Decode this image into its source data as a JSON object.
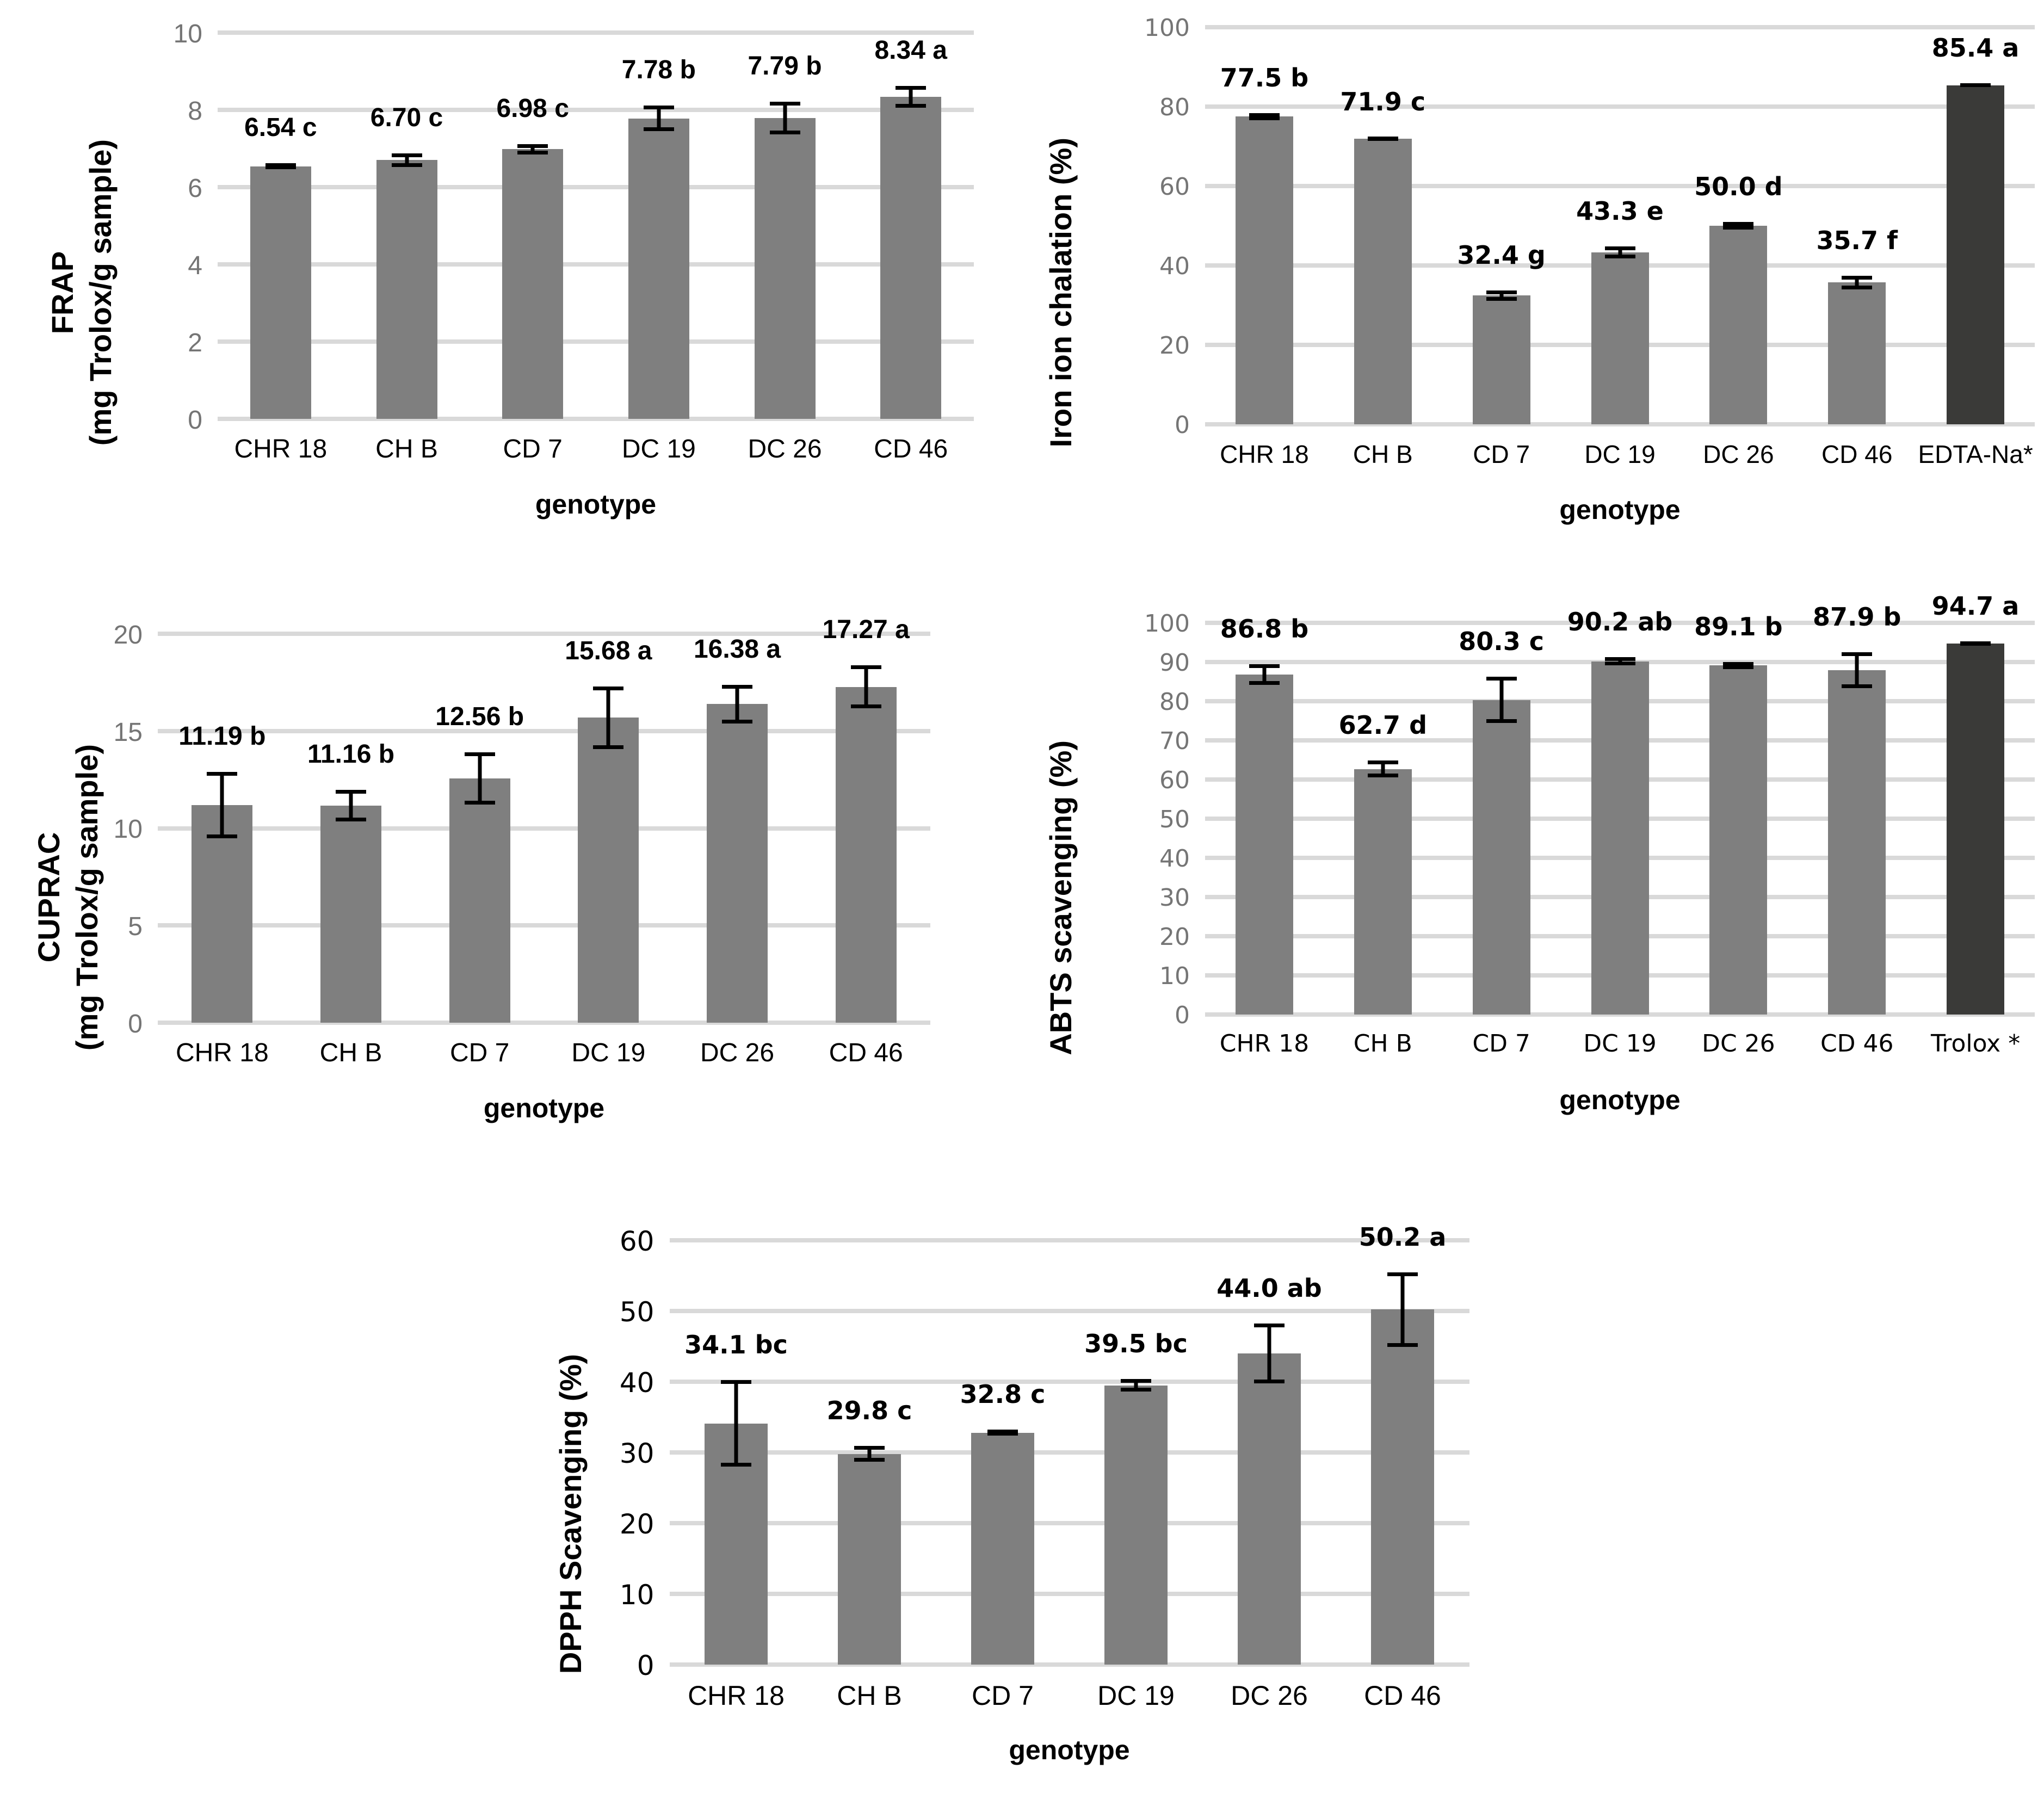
{
  "figure_title": "",
  "colors": {
    "bar_gray": "#7F7F7F",
    "reference_bar_dark": "#3A3A38",
    "gridline": "#D9D9D9",
    "tick_text_gray": "#757575",
    "tick_text_black": "#000000",
    "label_text": "#000000"
  },
  "chart_data": [
    {
      "type": "bar",
      "id": "frap",
      "ylabel_line1": "FRAP",
      "ylabel_line2": "(mg Trolox/g sample)",
      "xlabel": "genotype",
      "categories": [
        "CHR 18",
        "CH B",
        "CD 7",
        "DC 19",
        "DC 26",
        "CD 46"
      ],
      "values": [
        6.54,
        6.7,
        6.98,
        7.78,
        7.79,
        8.34
      ],
      "errors": [
        0.08,
        0.18,
        0.13,
        0.33,
        0.42,
        0.28
      ],
      "bar_labels": [
        "6.54 c",
        "6.70 c",
        "6.98 c",
        "7.78 b",
        "7.79 b",
        "8.34 a"
      ],
      "bar_colors": [
        "#7F7F7F",
        "#7F7F7F",
        "#7F7F7F",
        "#7F7F7F",
        "#7F7F7F",
        "#7F7F7F"
      ],
      "ylim": [
        0,
        10
      ],
      "yticks": [
        0,
        2,
        4,
        6,
        8,
        10
      ],
      "ytick_labels": [
        "0",
        "2",
        "4",
        "6",
        "8",
        "10"
      ],
      "ytick_color": "#757575",
      "grid": true,
      "legend": "none"
    },
    {
      "type": "bar",
      "id": "iron-chelation",
      "ylabel_line1": "Iron ion chalation (%)",
      "ylabel_line2": "",
      "xlabel": "genotype",
      "categories": [
        "CHR 18",
        "CH B",
        "CD 7",
        "DC 19",
        "DC 26",
        "CD 46",
        "EDTA-Na*"
      ],
      "values": [
        77.5,
        71.9,
        32.4,
        43.3,
        50.0,
        35.7,
        85.4
      ],
      "errors": [
        0.9,
        0.4,
        1.3,
        1.5,
        0.9,
        1.7,
        0.5
      ],
      "bar_labels": [
        "77.5 b",
        "71.9 c",
        "32.4 g",
        "43.3 e",
        "50.0 d",
        "35.7 f",
        "85.4 a"
      ],
      "bar_colors": [
        "#7F7F7F",
        "#7F7F7F",
        "#7F7F7F",
        "#7F7F7F",
        "#7F7F7F",
        "#7F7F7F",
        "#3A3A38"
      ],
      "ylim": [
        0,
        100
      ],
      "yticks": [
        0,
        20,
        40,
        60,
        80,
        100
      ],
      "ytick_labels": [
        "0",
        "20",
        "40",
        "60",
        "80",
        "100"
      ],
      "ytick_color": "#757575",
      "grid": true,
      "legend": "none"
    },
    {
      "type": "bar",
      "id": "cuprac",
      "ylabel_line1": "CUPRAC",
      "ylabel_line2": "(mg Trolox/g sample)",
      "xlabel": "genotype",
      "categories": [
        "CHR 18",
        "CH B",
        "CD 7",
        "DC 19",
        "DC 26",
        "CD 46"
      ],
      "values": [
        11.19,
        11.16,
        12.56,
        15.68,
        16.38,
        17.27
      ],
      "errors": [
        1.7,
        0.8,
        1.35,
        1.6,
        1.0,
        1.1
      ],
      "bar_labels": [
        "11.19 b",
        "11.16 b",
        "12.56 b",
        "15.68 a",
        "16.38 a",
        "17.27 a"
      ],
      "bar_colors": [
        "#7F7F7F",
        "#7F7F7F",
        "#7F7F7F",
        "#7F7F7F",
        "#7F7F7F",
        "#7F7F7F"
      ],
      "ylim": [
        0,
        20
      ],
      "yticks": [
        0,
        5,
        10,
        15,
        20
      ],
      "ytick_labels": [
        "0",
        "5",
        "10",
        "15",
        "20"
      ],
      "ytick_color": "#757575",
      "grid": true,
      "legend": "none"
    },
    {
      "type": "bar",
      "id": "abts",
      "ylabel_line1": "ABTS scavenging (%)",
      "ylabel_line2": "",
      "xlabel": "genotype",
      "categories": [
        "CHR 18",
        "CH B",
        "CD 7",
        "DC 19",
        "DC 26",
        "CD 46",
        "Trolox *"
      ],
      "values": [
        86.8,
        62.7,
        80.3,
        90.2,
        89.1,
        87.9,
        94.7
      ],
      "errors": [
        2.6,
        2.1,
        5.9,
        1.0,
        0.9,
        4.6,
        0.6
      ],
      "bar_labels": [
        "86.8 b",
        "62.7 d",
        "80.3 c",
        "90.2 ab",
        "89.1 b",
        "87.9 b",
        "94.7 a"
      ],
      "bar_colors": [
        "#7F7F7F",
        "#7F7F7F",
        "#7F7F7F",
        "#7F7F7F",
        "#7F7F7F",
        "#7F7F7F",
        "#3A3A38"
      ],
      "ylim": [
        0,
        100
      ],
      "yticks": [
        0,
        10,
        20,
        30,
        40,
        50,
        60,
        70,
        80,
        90,
        100
      ],
      "ytick_labels": [
        "0",
        "10",
        "20",
        "30",
        "40",
        "50",
        "60",
        "70",
        "80",
        "90",
        "100"
      ],
      "ytick_color": "#757575",
      "grid": true,
      "legend": "none"
    },
    {
      "type": "bar",
      "id": "dpph",
      "ylabel_line1": "DPPH Scavenging (%)",
      "ylabel_line2": "",
      "xlabel": "genotype",
      "categories": [
        "CHR 18",
        "CH B",
        "CD 7",
        "DC 19",
        "DC 26",
        "CD 46"
      ],
      "values": [
        34.1,
        29.8,
        32.8,
        39.5,
        44.0,
        50.2
      ],
      "errors": [
        6.1,
        1.1,
        0.4,
        0.9,
        4.2,
        5.3
      ],
      "bar_labels": [
        "34.1 bc",
        "29.8 c",
        "32.8 c",
        "39.5 bc",
        "44.0 ab",
        "50.2 a"
      ],
      "bar_colors": [
        "#7F7F7F",
        "#7F7F7F",
        "#7F7F7F",
        "#7F7F7F",
        "#7F7F7F",
        "#7F7F7F"
      ],
      "ylim": [
        0,
        60
      ],
      "yticks": [
        0,
        10,
        20,
        30,
        40,
        50,
        60
      ],
      "ytick_labels": [
        "0",
        "10",
        "20",
        "30",
        "40",
        "50",
        "60"
      ],
      "ytick_color": "#000000",
      "grid": true,
      "legend": "none"
    }
  ]
}
